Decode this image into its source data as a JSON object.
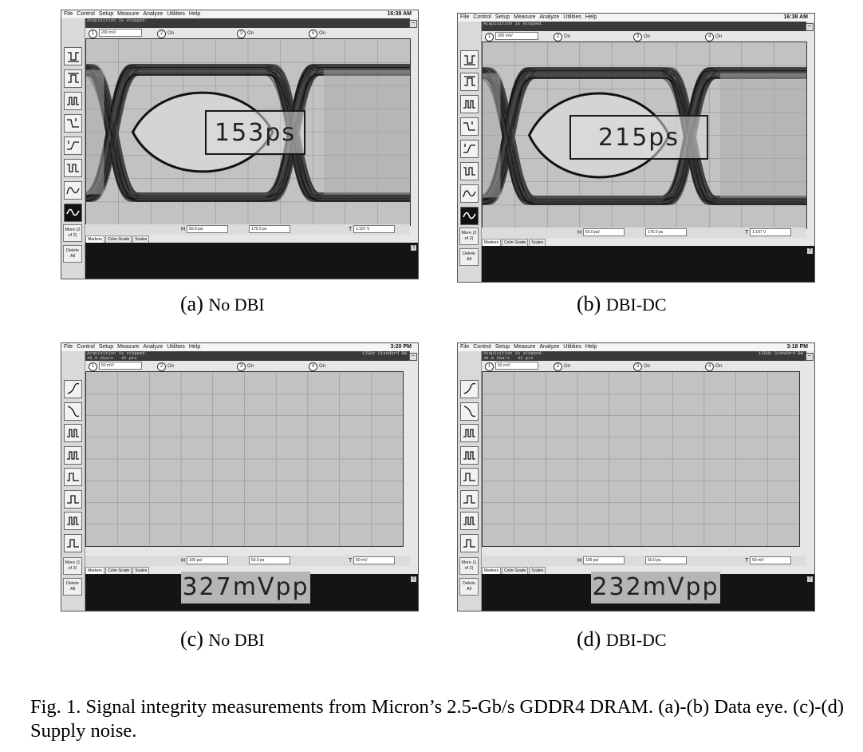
{
  "menu": [
    "File",
    "Control",
    "Setup",
    "Measure",
    "Analyze",
    "Utilities",
    "Help"
  ],
  "panels": [
    {
      "clock": "16:38 AM",
      "status1": "Acquisition is stopped.",
      "status2": "",
      "bw": "",
      "scale": "200 mV/",
      "ch_on": "On",
      "h_scale": "50.0 ps/",
      "h_pos": "175.0 ps",
      "trig": "1.197 V",
      "more": "More (2 of 2)",
      "delete": "Delete All",
      "measurement": "153ps",
      "caption_label": "(a)",
      "caption_text": "No DBI"
    },
    {
      "clock": "16:38 AM",
      "status1": "Acquisition is stopped.",
      "status2": "",
      "bw": "",
      "scale": "200 mV/",
      "ch_on": "On",
      "h_scale": "50.0 ps/",
      "h_pos": "175.0 ps",
      "trig": "1.197 V",
      "more": "More (2 of 2)",
      "delete": "Delete All",
      "measurement": "215ps",
      "caption_label": "(b)",
      "caption_text": "DBI-DC"
    },
    {
      "clock": "3:20 PM",
      "status1": "Acquisition is stopped.",
      "status2": "49.9 GSa/s   42 pts",
      "bw": "12GHz Standard BW",
      "scale": "50 mV/",
      "ch_on": "On",
      "h_scale": "100 ps/",
      "h_pos": "50.0 ps",
      "trig": "50 mV",
      "more": "More (1 of 2)",
      "delete": "Delete All",
      "measurement": "327mVpp",
      "caption_label": "(c)",
      "caption_text": "No DBI"
    },
    {
      "clock": "3:18 PM",
      "status1": "Acquisition is stopped.",
      "status2": "49.9 GSa/s   42 pts",
      "bw": "12GHz Standard BW",
      "scale": "50 mV/",
      "ch_on": "On",
      "h_scale": "100 ps/",
      "h_pos": "50.0 ps",
      "trig": "50 mV",
      "more": "More (1 of 2)",
      "delete": "Delete All",
      "measurement": "232mVpp",
      "caption_label": "(d)",
      "caption_text": "DBI-DC"
    }
  ],
  "tabs": [
    "Markers",
    "Color Grade",
    "Scales"
  ],
  "channels": [
    "1",
    "2",
    "3",
    "4"
  ],
  "noise_amplitude": [
    327,
    232
  ],
  "eye_width": [
    153,
    215
  ],
  "figure_caption": "Fig. 1.  Signal integrity measurements from Micron’s 2.5-Gb/s GDDR4 DRAM. (a)-(b) Data eye. (c)-(d) Supply noise."
}
